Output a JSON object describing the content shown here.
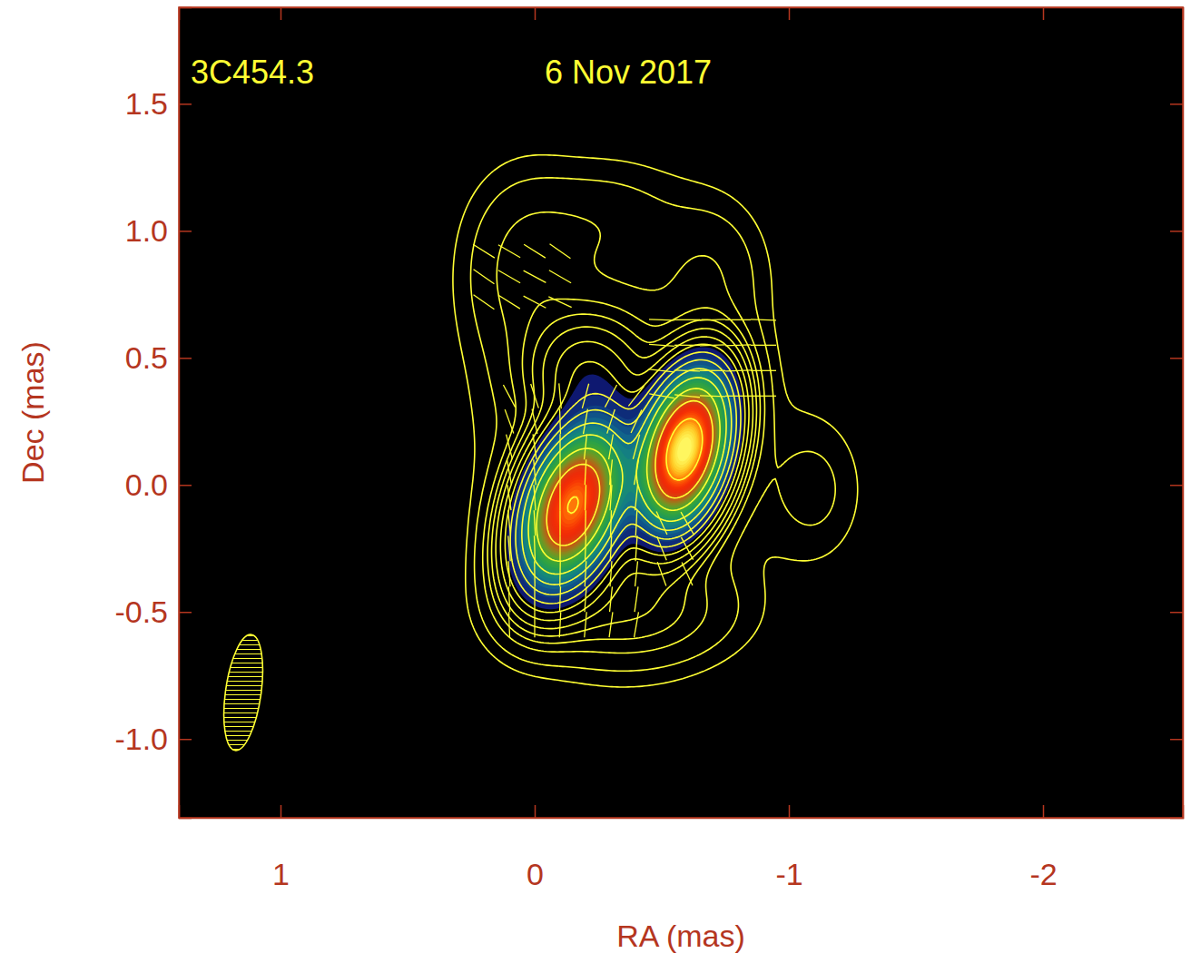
{
  "chart_data": {
    "type": "contour",
    "title": "3C454.3",
    "subtitle": "6 Nov 2017",
    "xlabel": "RA (mas)",
    "ylabel": "Dec (mas)",
    "xlim": [
      1.4,
      -2.55
    ],
    "ylim": [
      -1.31,
      1.88
    ],
    "xticks": [
      1,
      0,
      -1,
      -2
    ],
    "yticks": [
      {
        "value": -1,
        "label": "-1.0"
      },
      -0.5,
      {
        "value": 0,
        "label": "0.0"
      },
      0.5,
      {
        "value": 1,
        "label": "1.0"
      },
      1.5
    ],
    "color": "#ffff33",
    "components": {
      "ra": [
        -0.59,
        -0.15,
        0.05,
        -0.25,
        -0.7,
        -1.1,
        -0.35,
        -0.35,
        -0.2
      ],
      "dec": [
        0.14,
        -0.08,
        0.85,
        1.05,
        0.85,
        -0.02,
        -0.5,
        0.25,
        0.45
      ],
      "flux": [
        1.0,
        0.8,
        0.012,
        0.006,
        0.008,
        0.007,
        0.02,
        0.02,
        0.05
      ],
      "major": [
        0.42,
        0.45,
        0.55,
        0.45,
        0.4,
        0.45,
        0.6,
        1.1,
        0.3
      ],
      "minor": [
        0.22,
        0.25,
        0.35,
        0.3,
        0.3,
        0.3,
        0.3,
        0.7,
        0.3
      ],
      "pa": [
        -15,
        -20,
        0,
        90,
        0,
        0,
        90,
        0,
        0
      ]
    },
    "contour_levels": [
      0.003,
      0.006,
      0.012,
      0.018,
      0.025,
      0.035,
      0.05,
      0.07,
      0.1,
      0.14,
      0.2,
      0.28,
      0.4,
      0.56,
      0.8
    ],
    "image_lim": [
      0.08,
      1.0
    ],
    "evpa": {
      "ra": [
        0.1,
        0,
        -0.1,
        -0.2,
        -0.3,
        -0.4,
        0.1,
        0,
        -0.1,
        -0.2,
        -0.3,
        -0.4,
        0.1,
        0,
        -0.1,
        -0.2,
        -0.3,
        -0.4,
        0.1,
        0,
        -0.1,
        -0.2,
        -0.3,
        -0.4,
        0.1,
        0,
        -0.1,
        -0.2,
        -0.3,
        -0.4,
        0.1,
        0,
        -0.1,
        -0.2,
        -0.3,
        -0.4,
        0.1,
        0,
        -0.1,
        -0.2,
        -0.3,
        -0.4,
        0.1,
        0,
        -0.1,
        -0.2,
        -0.3,
        -0.4,
        0.1,
        0,
        -0.1,
        -0.2,
        -0.3,
        -0.4,
        0.1,
        0,
        -0.1,
        -0.2,
        -0.3,
        -0.4,
        -0.5,
        -0.6,
        -0.5,
        -0.6,
        -0.5,
        -0.6,
        -0.5,
        -0.6,
        -0.7,
        -0.8,
        -0.9,
        -0.5,
        -0.6,
        -0.7,
        -0.8,
        -0.9,
        -0.5,
        -0.6,
        -0.7,
        -0.8,
        -0.9,
        -0.5,
        -0.6,
        -0.7,
        -0.8,
        -0.9,
        0.2,
        0.1,
        0,
        -0.1,
        0.2,
        0.1,
        0,
        -0.1,
        0.2,
        0.1,
        0,
        -0.1
      ],
      "dec": [
        -0.55,
        -0.55,
        -0.55,
        -0.55,
        -0.55,
        -0.55,
        -0.45,
        -0.45,
        -0.45,
        -0.45,
        -0.45,
        -0.45,
        -0.35,
        -0.35,
        -0.35,
        -0.35,
        -0.35,
        -0.35,
        -0.25,
        -0.25,
        -0.25,
        -0.25,
        -0.25,
        -0.25,
        -0.15,
        -0.15,
        -0.15,
        -0.15,
        -0.15,
        -0.15,
        -0.05,
        -0.05,
        -0.05,
        -0.05,
        -0.05,
        -0.05,
        0.05,
        0.05,
        0.05,
        0.05,
        0.05,
        0.05,
        0.15,
        0.15,
        0.15,
        0.15,
        0.15,
        0.15,
        0.25,
        0.25,
        0.25,
        0.25,
        0.25,
        0.25,
        0.35,
        0.35,
        0.35,
        0.35,
        0.35,
        0.35,
        -0.35,
        -0.35,
        -0.25,
        -0.25,
        -0.15,
        -0.15,
        0.35,
        0.35,
        0.35,
        0.35,
        0.35,
        0.45,
        0.45,
        0.45,
        0.45,
        0.45,
        0.55,
        0.55,
        0.55,
        0.55,
        0.55,
        0.65,
        0.65,
        0.65,
        0.65,
        0.65,
        0.72,
        0.72,
        0.72,
        0.72,
        0.82,
        0.82,
        0.82,
        0.82,
        0.92,
        0.92,
        0.92,
        0.92
      ],
      "pa": [
        2,
        0,
        -3,
        -5,
        -8,
        -10,
        3,
        0,
        -2,
        -4,
        -6,
        -8,
        4,
        1,
        -1,
        -3,
        -4,
        -6,
        5,
        2,
        0,
        -2,
        -3,
        -4,
        6,
        3,
        0,
        -1,
        -2,
        -3,
        8,
        4,
        0,
        -2,
        -4,
        -6,
        10,
        5,
        0,
        -3,
        -6,
        -10,
        14,
        8,
        0,
        -6,
        -10,
        -15,
        20,
        12,
        2,
        -10,
        -18,
        -25,
        28,
        18,
        5,
        -15,
        -28,
        -38,
        20,
        25,
        22,
        28,
        25,
        30,
        80,
        84,
        88,
        90,
        90,
        84,
        88,
        90,
        92,
        90,
        86,
        90,
        92,
        92,
        90,
        88,
        90,
        92,
        90,
        88,
        55,
        58,
        62,
        65,
        55,
        60,
        62,
        60,
        58,
        60,
        58,
        55
      ]
    },
    "beam": {
      "major": 0.46,
      "minor": 0.14,
      "pa": -8
    }
  }
}
